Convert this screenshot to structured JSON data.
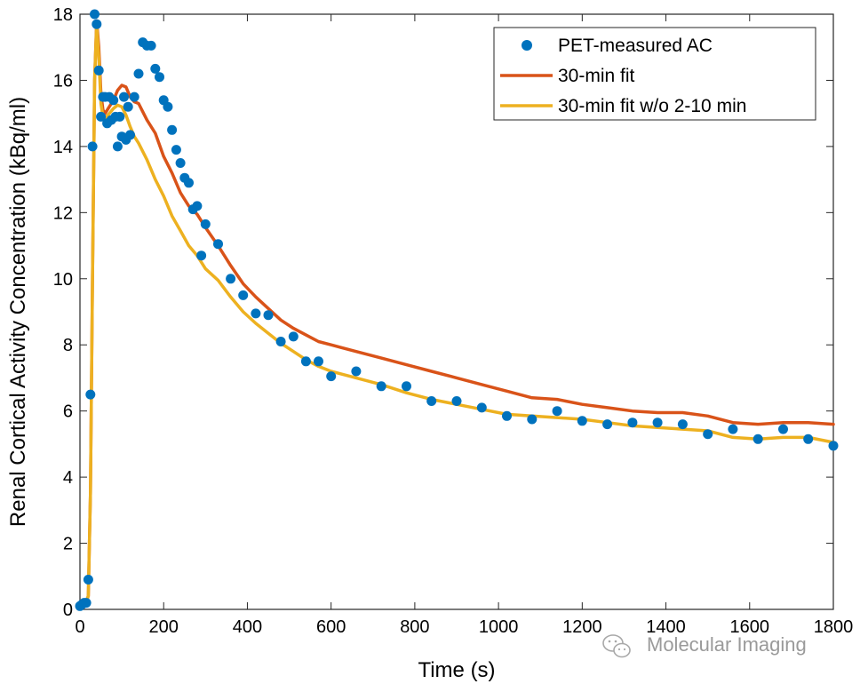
{
  "chart_data": {
    "type": "line",
    "xlabel": "Time (s)",
    "ylabel": "Renal Cortical Activity Concentration (kBq/ml)",
    "xlim": [
      0,
      1800
    ],
    "ylim": [
      0,
      18
    ],
    "x_ticks": [
      "0",
      "200",
      "400",
      "600",
      "800",
      "1000",
      "1200",
      "1400",
      "1600",
      "1800"
    ],
    "y_ticks": [
      "0",
      "2",
      "4",
      "6",
      "8",
      "10",
      "12",
      "14",
      "16",
      "18"
    ],
    "grid": false,
    "legend_position": "top-right",
    "series": [
      {
        "name": "PET-measured AC",
        "style": "markers",
        "color": "#0072BD",
        "x": [
          0,
          5,
          10,
          15,
          20,
          25,
          30,
          35,
          40,
          45,
          50,
          55,
          60,
          65,
          70,
          75,
          80,
          85,
          90,
          95,
          100,
          105,
          110,
          115,
          120,
          130,
          140,
          150,
          160,
          170,
          180,
          190,
          200,
          210,
          220,
          230,
          240,
          250,
          260,
          270,
          280,
          290,
          300,
          330,
          360,
          390,
          420,
          450,
          480,
          510,
          540,
          570,
          600,
          660,
          720,
          780,
          840,
          900,
          960,
          1020,
          1080,
          1140,
          1200,
          1260,
          1320,
          1380,
          1440,
          1500,
          1560,
          1620,
          1680,
          1740,
          1800
        ],
        "y": [
          0.1,
          0.15,
          0.2,
          0.2,
          0.9,
          6.5,
          14.0,
          18.0,
          17.7,
          16.3,
          14.9,
          15.5,
          15.5,
          14.7,
          15.5,
          14.8,
          15.4,
          14.9,
          14.0,
          14.9,
          14.3,
          15.5,
          14.2,
          15.2,
          14.35,
          15.5,
          16.2,
          17.15,
          17.05,
          17.05,
          16.35,
          16.1,
          15.4,
          15.2,
          14.5,
          13.9,
          13.5,
          13.05,
          12.9,
          12.1,
          12.2,
          10.7,
          11.65,
          11.05,
          10.0,
          9.5,
          8.95,
          8.9,
          8.1,
          8.25,
          7.5,
          7.5,
          7.05,
          7.2,
          6.75,
          6.75,
          6.3,
          6.3,
          6.1,
          5.85,
          5.75,
          6.0,
          5.7,
          5.6,
          5.65,
          5.65,
          5.6,
          5.3,
          5.45,
          5.15,
          5.45,
          5.15,
          4.95
        ]
      },
      {
        "name": "30-min fit",
        "style": "line",
        "color": "#D95319",
        "x": [
          0,
          10,
          20,
          25,
          30,
          35,
          40,
          45,
          50,
          55,
          60,
          70,
          80,
          90,
          100,
          110,
          120,
          130,
          140,
          160,
          180,
          200,
          220,
          240,
          260,
          280,
          300,
          330,
          360,
          390,
          420,
          450,
          480,
          510,
          540,
          570,
          600,
          660,
          720,
          780,
          840,
          900,
          960,
          1020,
          1080,
          1140,
          1200,
          1260,
          1320,
          1380,
          1440,
          1500,
          1560,
          1620,
          1680,
          1740,
          1800
        ],
        "y": [
          0.05,
          0.1,
          0.4,
          3.5,
          10.0,
          16.0,
          17.8,
          17.0,
          15.6,
          15.1,
          15.0,
          15.2,
          15.4,
          15.7,
          15.85,
          15.8,
          15.5,
          15.35,
          15.3,
          14.8,
          14.4,
          13.7,
          13.2,
          12.6,
          12.2,
          11.95,
          11.55,
          11.0,
          10.4,
          9.85,
          9.45,
          9.1,
          8.75,
          8.5,
          8.3,
          8.1,
          8.0,
          7.8,
          7.6,
          7.4,
          7.2,
          7.0,
          6.8,
          6.6,
          6.4,
          6.35,
          6.2,
          6.1,
          6.0,
          5.95,
          5.95,
          5.85,
          5.65,
          5.6,
          5.65,
          5.65,
          5.6
        ]
      },
      {
        "name": "30-min fit w/o 2-10 min",
        "style": "line",
        "color": "#EDB120",
        "x": [
          0,
          10,
          20,
          25,
          30,
          35,
          40,
          45,
          50,
          55,
          60,
          70,
          80,
          90,
          100,
          110,
          120,
          130,
          140,
          160,
          180,
          200,
          220,
          240,
          260,
          280,
          300,
          330,
          360,
          390,
          420,
          450,
          480,
          510,
          540,
          570,
          600,
          660,
          720,
          780,
          840,
          900,
          960,
          1020,
          1080,
          1140,
          1200,
          1260,
          1320,
          1380,
          1440,
          1500,
          1560,
          1620,
          1680,
          1740,
          1800
        ],
        "y": [
          0.05,
          0.1,
          0.4,
          3.5,
          10.0,
          16.0,
          17.7,
          16.7,
          15.3,
          14.9,
          14.85,
          15.0,
          15.15,
          15.25,
          15.2,
          14.95,
          14.6,
          14.3,
          14.1,
          13.6,
          13.0,
          12.5,
          11.9,
          11.45,
          11.0,
          10.7,
          10.3,
          9.95,
          9.45,
          9.0,
          8.65,
          8.35,
          8.05,
          7.8,
          7.55,
          7.35,
          7.2,
          7.0,
          6.8,
          6.55,
          6.35,
          6.2,
          6.05,
          5.9,
          5.85,
          5.8,
          5.75,
          5.65,
          5.55,
          5.5,
          5.45,
          5.4,
          5.2,
          5.15,
          5.2,
          5.2,
          5.05
        ]
      }
    ]
  },
  "watermark": {
    "text": "Molecular Imaging"
  }
}
